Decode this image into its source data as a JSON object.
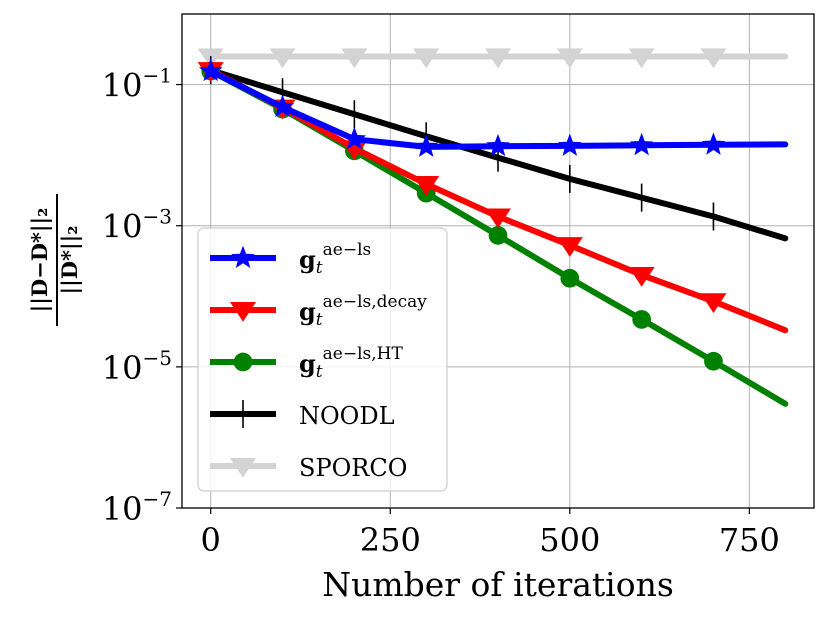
{
  "chart_data": {
    "type": "line",
    "title": "",
    "xlabel": "Number of iterations",
    "ylabel": "||D−D*||₂ / ||D*||₂",
    "yscale": "log",
    "xlim": [
      -40,
      840
    ],
    "ylim": [
      1e-07,
      1
    ],
    "xticks": [
      0,
      250,
      500,
      750
    ],
    "yticks": [
      {
        "base": "10",
        "exp": "−1",
        "value": 0.1
      },
      {
        "base": "10",
        "exp": "−3",
        "value": 0.001
      },
      {
        "base": "10",
        "exp": "−5",
        "value": 1e-05
      },
      {
        "base": "10",
        "exp": "−7",
        "value": 1e-07
      }
    ],
    "grid": true,
    "legend_position": "bottom-left",
    "series": [
      {
        "name": "g_t^ae−ls",
        "base": "g",
        "sub": "t",
        "sup": "ae−ls",
        "color": "#0000ff",
        "marker": "star",
        "x": [
          0,
          100,
          200,
          300,
          400,
          500,
          600,
          700,
          800
        ],
        "y": [
          0.155,
          0.048,
          0.0168,
          0.0131,
          0.0134,
          0.0135,
          0.0138,
          0.014,
          0.0142
        ]
      },
      {
        "name": "g_t^ae−ls,decay",
        "base": "g",
        "sub": "t",
        "sup": "ae−ls,decay",
        "color": "#ff0000",
        "marker": "triangle-down",
        "x": [
          0,
          100,
          200,
          300,
          400,
          500,
          600,
          700,
          800
        ],
        "y": [
          0.16,
          0.047,
          0.0125,
          0.0039,
          0.00135,
          0.00053,
          0.0002,
          8.5e-05,
          3.3e-05
        ]
      },
      {
        "name": "g_t^ae−ls,HT",
        "base": "g",
        "sub": "t",
        "sup": "ae−ls,HT",
        "color": "#008000",
        "marker": "circle",
        "x": [
          0,
          100,
          200,
          300,
          400,
          500,
          600,
          700,
          800
        ],
        "y": [
          0.155,
          0.045,
          0.0115,
          0.0029,
          0.00073,
          0.00018,
          4.7e-05,
          1.2e-05,
          3e-06
        ]
      },
      {
        "name": "NOODL",
        "color": "#000000",
        "marker": "plus",
        "x": [
          0,
          100,
          200,
          300,
          400,
          500,
          600,
          700,
          800
        ],
        "y": [
          0.16,
          0.078,
          0.038,
          0.0185,
          0.0092,
          0.0046,
          0.0025,
          0.00135,
          0.00066
        ]
      },
      {
        "name": "SPORCO",
        "color": "#d3d3d3",
        "marker": "triangle-down",
        "x": [
          0,
          100,
          200,
          300,
          400,
          500,
          600,
          700,
          800
        ],
        "y": [
          0.25,
          0.25,
          0.25,
          0.25,
          0.25,
          0.25,
          0.25,
          0.25,
          0.25
        ]
      }
    ]
  }
}
